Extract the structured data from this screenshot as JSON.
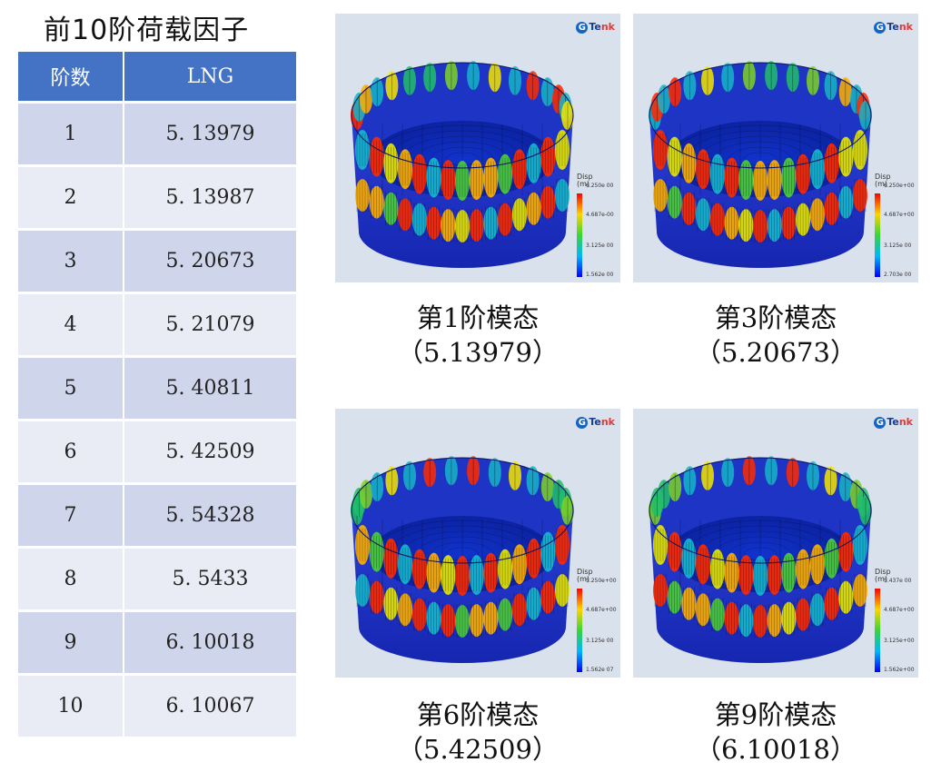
{
  "title": "前10阶荷载因子",
  "table": {
    "headers": [
      "阶数",
      "LNG"
    ],
    "rows": [
      [
        "1",
        "5. 13979"
      ],
      [
        "2",
        "5. 13987"
      ],
      [
        "3",
        "5. 20673"
      ],
      [
        "4",
        "5. 21079"
      ],
      [
        "5",
        "5. 40811"
      ],
      [
        "6",
        "5. 42509"
      ],
      [
        "7",
        "5. 54328"
      ],
      [
        "8",
        "5. 5433"
      ],
      [
        "9",
        "6. 10018"
      ],
      [
        "10",
        "6. 10067"
      ]
    ]
  },
  "logo": {
    "g": "G",
    "text": "Te",
    "k": "nk"
  },
  "legend": {
    "title_line1": "Disp",
    "title_line2": "(m)"
  },
  "modes": [
    {
      "caption": "第1阶模态",
      "value": "（5.13979）",
      "legend_values": [
        "6.250e 00",
        "4.687e-00",
        "3.125e 00",
        "1.562e 00"
      ]
    },
    {
      "caption": "第3阶模态",
      "value": "（5.20673）",
      "legend_values": [
        "6.250e+00",
        "4.687e+00",
        "3.125e 00",
        "2.703e 00"
      ]
    },
    {
      "caption": "第6阶模态",
      "value": "（5.42509）",
      "legend_values": [
        "5.250e+00",
        "4.687e+00",
        "3.125e 00",
        "1.562e 07"
      ]
    },
    {
      "caption": "第9阶模态",
      "value": "（6.10018）",
      "legend_values": [
        "5.437e 00",
        "4.687e+00",
        "3.125e+00",
        "1.562e+00"
      ]
    }
  ]
}
